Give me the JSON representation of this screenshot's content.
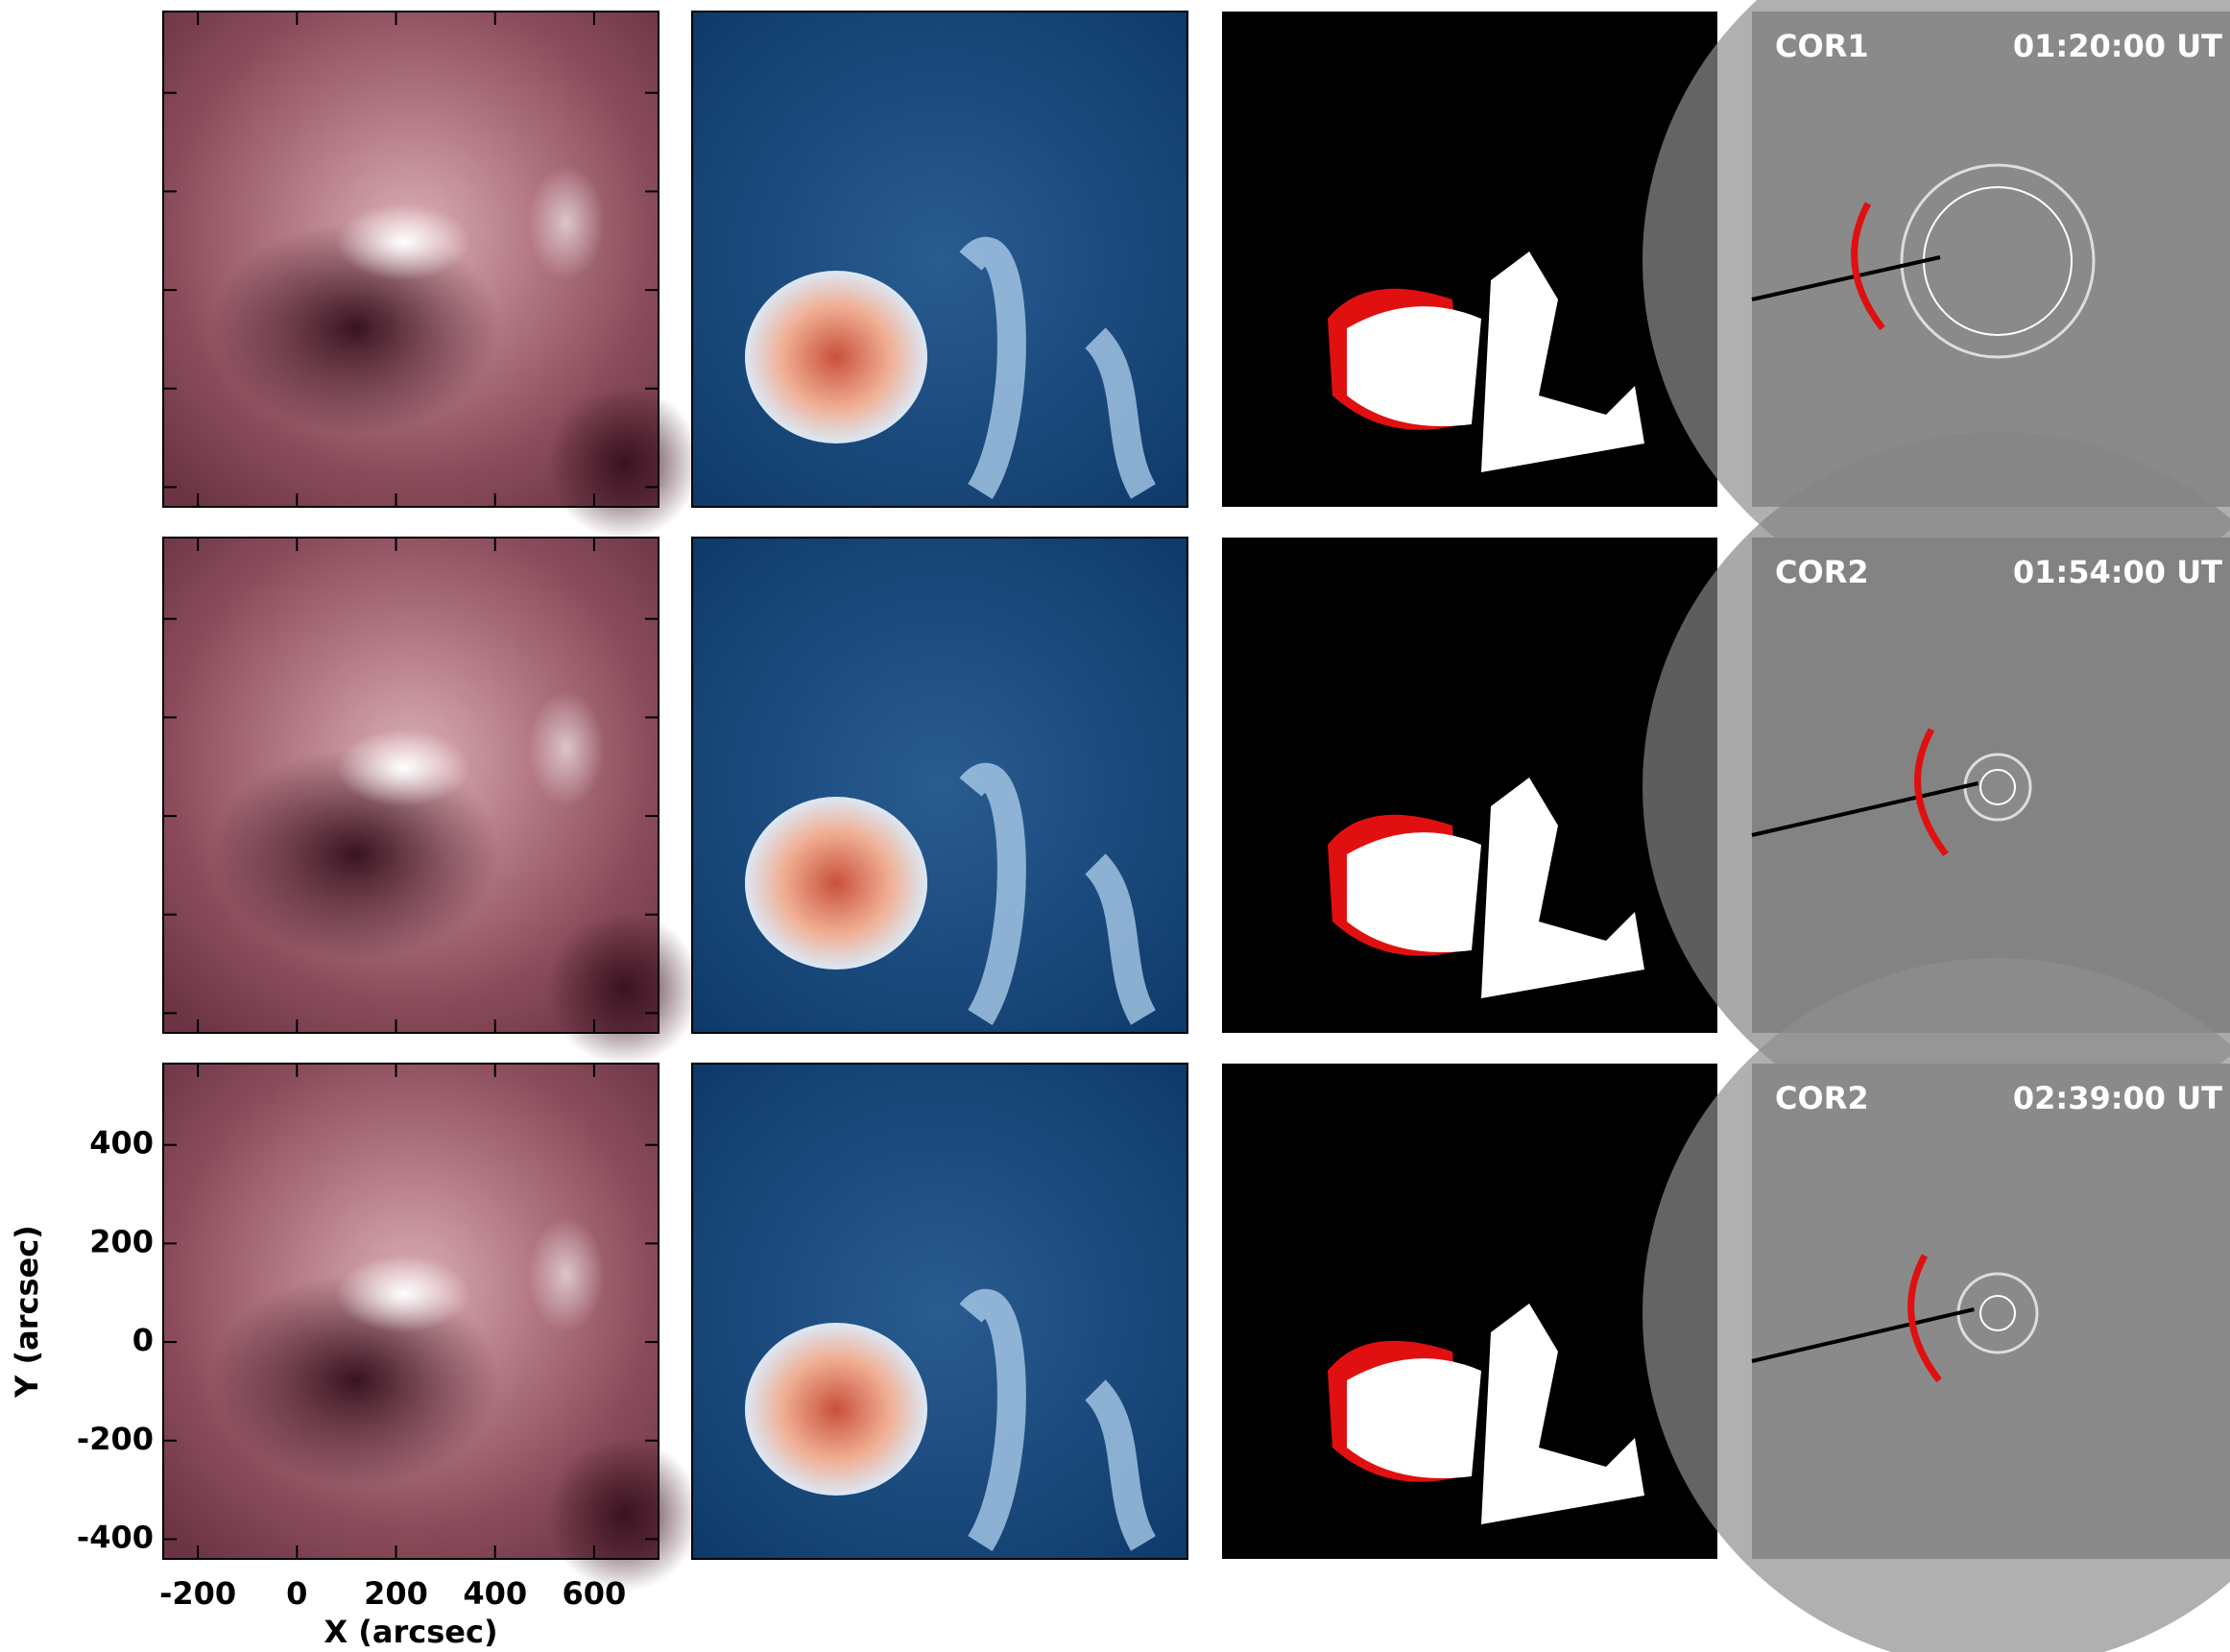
{
  "figure": {
    "x_axis": {
      "label": "X (arcsec)",
      "lim": [
        -270,
        730
      ],
      "ticks": [
        -200,
        0,
        200,
        400,
        600
      ]
    },
    "y_axis": {
      "label": "Y (arcsec)",
      "lim": [
        -440,
        565
      ],
      "ticks": [
        -400,
        -200,
        0,
        200,
        400
      ]
    },
    "coronagraph_panels": [
      {
        "instrument": "COR1",
        "time": "01:20:00 UT"
      },
      {
        "instrument": "COR2",
        "time": "01:54:00 UT"
      },
      {
        "instrument": "COR2",
        "time": "02:39:00 UT"
      }
    ]
  }
}
